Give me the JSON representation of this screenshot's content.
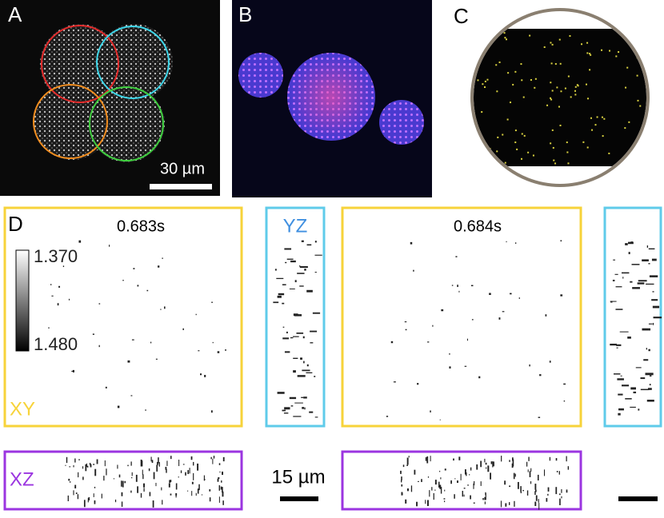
{
  "panels": {
    "a": {
      "label": "A",
      "scale_bar": "30 µm"
    },
    "b": {
      "label": "B"
    },
    "c": {
      "label": "C"
    },
    "d": {
      "label": "D",
      "time_left": "0.683s",
      "time_right": "0.684s",
      "yz": "YZ",
      "xy": "XY",
      "xz": "XZ",
      "colorbar_top": "1.370",
      "colorbar_bottom": "1.480",
      "scale_bar": "15 µm"
    }
  }
}
